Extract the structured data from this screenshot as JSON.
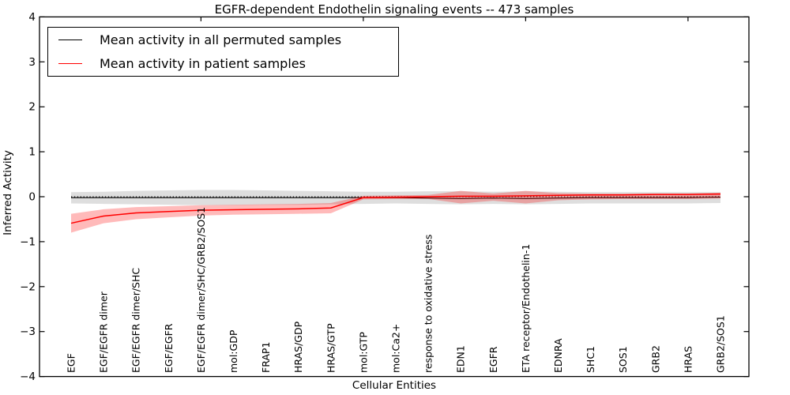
{
  "title": "EGFR-dependent Endothelin signaling events -- 473 samples",
  "legend": {
    "position": "upper left",
    "items": [
      {
        "label": "Mean activity in all permuted samples",
        "color": "#000000"
      },
      {
        "label": "Mean activity in patient samples",
        "color": "#ff0000"
      }
    ]
  },
  "chart_data": {
    "type": "line",
    "title": "EGFR-dependent Endothelin signaling events -- 473 samples",
    "xlabel": "Cellular Entities",
    "ylabel": "Inferred Activity",
    "ylim": [
      -4,
      4
    ],
    "yticks": [
      4,
      3,
      2,
      1,
      0,
      -1,
      -2,
      -3,
      -4
    ],
    "grid": false,
    "legend_position": "upper left",
    "x_categories": [
      "EGF",
      "EGF/EGFR dimer",
      "EGF/EGFR dimer/SHC",
      "EGF/EGFR",
      "EGF/EGFR dimer/SHC/GRB2/SOS1",
      "mol:GDP",
      "FRAP1",
      "HRAS/GDP",
      "HRAS/GTP",
      "mol:GTP",
      "mol:Ca2+",
      "response to oxidative stress",
      "EDN1",
      "EGFR",
      "ETA receptor/Endothelin-1",
      "EDNRA",
      "SHC1",
      "SOS1",
      "GRB2",
      "HRAS",
      "GRB2/SOS1"
    ],
    "x_major_tick_indices": [
      4,
      9,
      14,
      19
    ],
    "reference_line": {
      "y": 0,
      "style": "dotted",
      "color": "#000000"
    },
    "series": [
      {
        "name": "Mean activity in all permuted samples",
        "line_color": "#000000",
        "band_color": "rgba(0,0,0,0.13)",
        "values": [
          -0.02,
          -0.02,
          -0.02,
          -0.02,
          -0.02,
          -0.02,
          -0.02,
          -0.02,
          -0.02,
          -0.02,
          -0.02,
          -0.03,
          -0.04,
          -0.03,
          -0.04,
          -0.03,
          -0.02,
          -0.02,
          -0.02,
          -0.02,
          -0.01
        ],
        "band_upper": [
          0.1,
          0.11,
          0.13,
          0.14,
          0.15,
          0.15,
          0.14,
          0.13,
          0.12,
          0.11,
          0.11,
          0.12,
          0.12,
          0.11,
          0.12,
          0.11,
          0.1,
          0.1,
          0.1,
          0.1,
          0.1
        ],
        "band_lower": [
          -0.15,
          -0.16,
          -0.17,
          -0.18,
          -0.19,
          -0.19,
          -0.18,
          -0.18,
          -0.17,
          -0.16,
          -0.15,
          -0.16,
          -0.17,
          -0.16,
          -0.17,
          -0.16,
          -0.15,
          -0.15,
          -0.15,
          -0.15,
          -0.14
        ]
      },
      {
        "name": "Mean activity in patient samples",
        "line_color": "#ff0000",
        "band_color": "rgba(255,0,0,0.27)",
        "values": [
          -0.59,
          -0.43,
          -0.36,
          -0.33,
          -0.3,
          -0.29,
          -0.28,
          -0.27,
          -0.25,
          -0.02,
          -0.01,
          0.0,
          0.01,
          0.01,
          0.02,
          0.03,
          0.04,
          0.04,
          0.05,
          0.05,
          0.06
        ],
        "band_upper": [
          -0.38,
          -0.28,
          -0.23,
          -0.21,
          -0.19,
          -0.18,
          -0.17,
          -0.16,
          -0.14,
          0.02,
          0.03,
          0.04,
          0.13,
          0.07,
          0.13,
          0.08,
          0.07,
          0.07,
          0.07,
          0.07,
          0.09
        ],
        "band_lower": [
          -0.8,
          -0.59,
          -0.5,
          -0.46,
          -0.42,
          -0.4,
          -0.39,
          -0.38,
          -0.37,
          -0.06,
          -0.05,
          -0.05,
          -0.15,
          -0.09,
          -0.15,
          -0.08,
          -0.06,
          -0.05,
          -0.05,
          -0.05,
          -0.04
        ]
      }
    ]
  }
}
